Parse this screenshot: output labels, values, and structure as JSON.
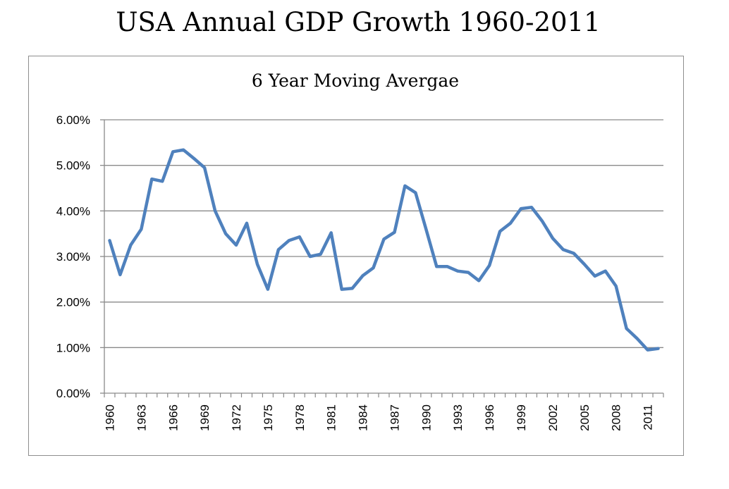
{
  "title": "USA Annual GDP Growth 1960-2011",
  "chart_data": {
    "type": "line",
    "title": "6 Year Moving Avergae",
    "xlabel": "",
    "ylabel": "",
    "ylim": [
      0,
      0.06
    ],
    "yticks": [
      "0.00%",
      "1.00%",
      "2.00%",
      "3.00%",
      "4.00%",
      "5.00%",
      "6.00%"
    ],
    "xtick_labels": [
      "1960",
      "1963",
      "1966",
      "1969",
      "1972",
      "1975",
      "1978",
      "1981",
      "1984",
      "1987",
      "1990",
      "1993",
      "1996",
      "1999",
      "2002",
      "2005",
      "2008",
      "2011"
    ],
    "grid": true,
    "legend": false,
    "line_color": "#4f81bd",
    "x": [
      1960,
      1961,
      1962,
      1963,
      1964,
      1965,
      1966,
      1967,
      1968,
      1969,
      1970,
      1971,
      1972,
      1973,
      1974,
      1975,
      1976,
      1977,
      1978,
      1979,
      1980,
      1981,
      1982,
      1983,
      1984,
      1985,
      1986,
      1987,
      1988,
      1989,
      1990,
      1991,
      1992,
      1993,
      1994,
      1995,
      1996,
      1997,
      1998,
      1999,
      2000,
      2001,
      2002,
      2003,
      2004,
      2005,
      2006,
      2007,
      2008,
      2009,
      2010,
      2011,
      2012
    ],
    "series": [
      {
        "values": [
          0.0335,
          0.026,
          0.0325,
          0.036,
          0.047,
          0.0465,
          0.053,
          0.0534,
          0.0515,
          0.0495,
          0.04,
          0.035,
          0.0325,
          0.0373,
          0.0283,
          0.0228,
          0.0315,
          0.0335,
          0.0343,
          0.03,
          0.0305,
          0.0352,
          0.0228,
          0.023,
          0.0258,
          0.0275,
          0.0338,
          0.0353,
          0.0455,
          0.044,
          0.036,
          0.0278,
          0.0278,
          0.0268,
          0.0265,
          0.0247,
          0.028,
          0.0355,
          0.0373,
          0.0405,
          0.0408,
          0.0378,
          0.034,
          0.0315,
          0.0307,
          0.0283,
          0.0257,
          0.0268,
          0.0235,
          0.0142,
          0.012,
          0.0095,
          0.0098
        ]
      }
    ]
  }
}
